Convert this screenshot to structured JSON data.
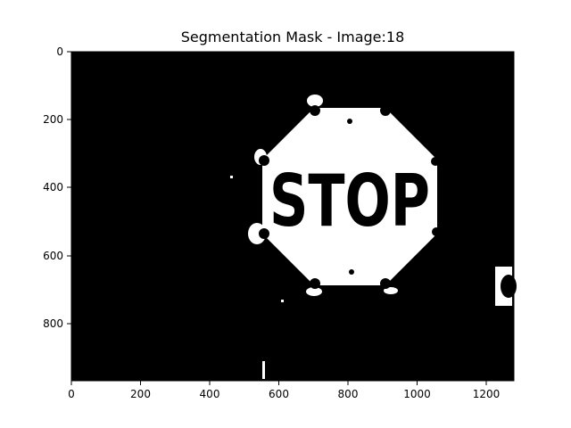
{
  "figure": {
    "title": "Segmentation Mask - Image:18",
    "sign_text": "STOP",
    "x_ticks": [
      "0",
      "200",
      "400",
      "600",
      "800",
      "1000",
      "1200"
    ],
    "y_ticks": [
      "0",
      "200",
      "400",
      "600",
      "800"
    ],
    "colors": {
      "background": "#000000",
      "mask": "#ffffff"
    }
  }
}
